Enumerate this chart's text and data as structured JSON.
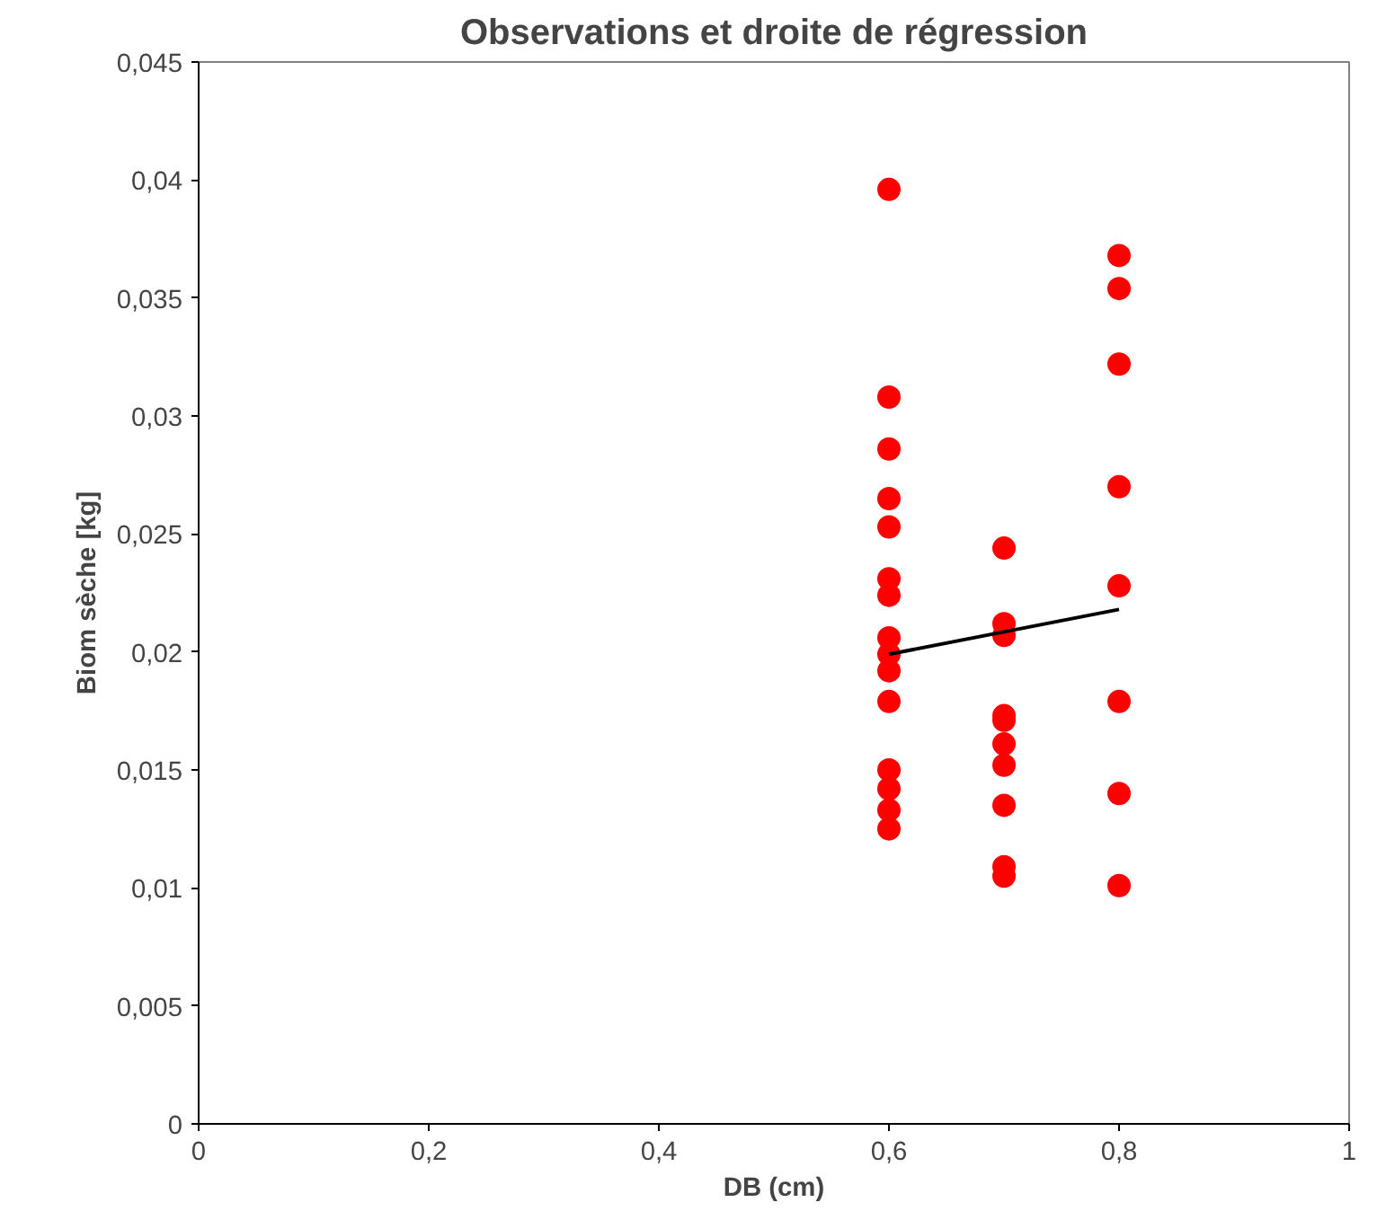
{
  "chart_data": {
    "type": "scatter",
    "title": "Observations et droite de régression",
    "xlabel": "DB (cm)",
    "ylabel": "Biom sèche [kg]",
    "xlim": [
      0,
      1
    ],
    "ylim": [
      0,
      0.045
    ],
    "xticks": [
      {
        "value": 0,
        "label": "0"
      },
      {
        "value": 0.2,
        "label": "0,2"
      },
      {
        "value": 0.4,
        "label": "0,4"
      },
      {
        "value": 0.6,
        "label": "0,6"
      },
      {
        "value": 0.8,
        "label": "0,8"
      },
      {
        "value": 1,
        "label": "1"
      }
    ],
    "yticks": [
      {
        "value": 0,
        "label": "0"
      },
      {
        "value": 0.005,
        "label": "0,005"
      },
      {
        "value": 0.01,
        "label": "0,01"
      },
      {
        "value": 0.015,
        "label": "0,015"
      },
      {
        "value": 0.02,
        "label": "0,02"
      },
      {
        "value": 0.025,
        "label": "0,025"
      },
      {
        "value": 0.03,
        "label": "0,03"
      },
      {
        "value": 0.035,
        "label": "0,035"
      },
      {
        "value": 0.04,
        "label": "0,04"
      },
      {
        "value": 0.045,
        "label": "0,045"
      }
    ],
    "grid": false,
    "marker": "circle",
    "series": [
      {
        "color": "#ff0000",
        "x": [
          0.6,
          0.6,
          0.6,
          0.6,
          0.6,
          0.6,
          0.6,
          0.6,
          0.6,
          0.6,
          0.6,
          0.6,
          0.6,
          0.6,
          0.6,
          0.7,
          0.7,
          0.7,
          0.7,
          0.7,
          0.7,
          0.7,
          0.7,
          0.7,
          0.7,
          0.8,
          0.8,
          0.8,
          0.8,
          0.8,
          0.8,
          0.8,
          0.8
        ],
        "values": [
          0.0396,
          0.0308,
          0.0286,
          0.0265,
          0.0253,
          0.0231,
          0.0224,
          0.0206,
          0.0199,
          0.0192,
          0.0179,
          0.015,
          0.0142,
          0.0133,
          0.0125,
          0.0244,
          0.0212,
          0.0207,
          0.0173,
          0.0171,
          0.0161,
          0.0152,
          0.0135,
          0.0109,
          0.0105,
          0.0368,
          0.0354,
          0.0322,
          0.027,
          0.0228,
          0.0179,
          0.014,
          0.0101
        ]
      },
      {
        "type": "line",
        "marker": "none",
        "color": "#000000",
        "x": [
          0.6,
          0.8
        ],
        "values": [
          0.0199,
          0.0218
        ]
      }
    ]
  }
}
